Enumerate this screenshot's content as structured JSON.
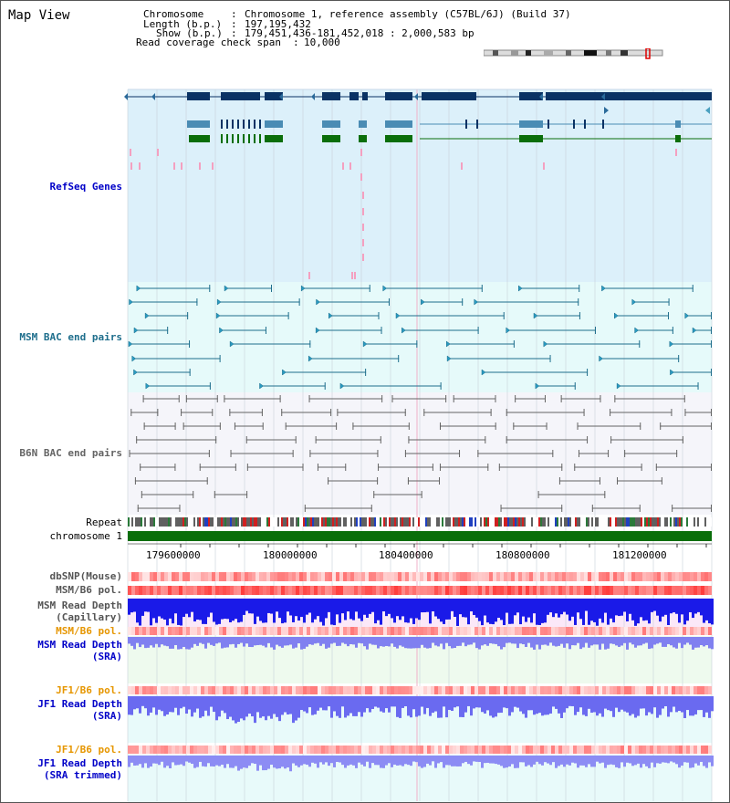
{
  "page": {
    "title": "Map View"
  },
  "info": {
    "chromosome_key": "Chromosome",
    "chromosome_value": "Chromosome 1, reference assembly (C57BL/6J) (Build 37)",
    "length_key": "Length (b.p.)",
    "length_value": "197,195,432",
    "show_key": "Show (b.p.)",
    "show_value": "179,451,436-181,452,018 : 2,000,583 bp",
    "coverage_key": "Read coverage check span",
    "coverage_value": "10,000"
  },
  "tracks": {
    "refseq": "RefSeq Genes",
    "msm_bac": "MSM BAC end pairs",
    "b6n_bac": "B6N BAC end pairs",
    "repeat": "Repeat",
    "chromosome": "chromosome 1",
    "dbsnp": "dbSNP(Mouse)",
    "msm_b6_pol": "MSM/B6 pol.",
    "msm_depth_cap_1": "MSM Read Depth",
    "msm_depth_cap_2": "(Capillary)",
    "msm_b6_pol2": "MSM/B6 pol.",
    "msm_depth_sra_1": "MSM Read Depth",
    "msm_depth_sra_2": "(SRA)",
    "jf1_b6_pol": "JF1/B6 pol.",
    "jf1_depth_sra_1": "JF1 Read Depth",
    "jf1_depth_sra_2": "(SRA)",
    "jf1_b6_pol2": "JF1/B6 pol.",
    "jf1_depth_trim_1": "JF1 Read Depth",
    "jf1_depth_trim_2": "(SRA trimmed)"
  },
  "scale": {
    "ticks": [
      "179600000",
      "180000000",
      "180400000",
      "180800000",
      "181200000"
    ]
  },
  "colors": {
    "refseq_bg": "#dcf0fa",
    "msm_bac_bg": "#e6fafa",
    "b6n_bg": "#f5f5fa",
    "gene_dark": "#0a3264",
    "gene_mid": "#4a8cb4",
    "gene_green": "#0a6e0a",
    "msm_bac_line": "#1e6e8c",
    "b6n_line": "#646464",
    "label_blue": "#0000c8",
    "label_orange": "#e69600",
    "label_teal": "#1e6e8c",
    "chromosome_green": "#0a6e0a"
  }
}
